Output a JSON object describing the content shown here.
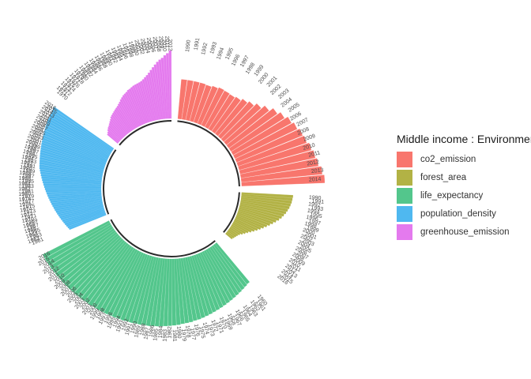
{
  "chart_data": {
    "type": "circular-bar",
    "title": "",
    "xlabel": "",
    "ylabel": "",
    "legend": {
      "title": "Middle income : Environment",
      "placement": "right"
    },
    "series": [
      {
        "name": "co2_emission",
        "color": "#F8766D",
        "years": [
          "1990",
          "1991",
          "1992",
          "1993",
          "1994",
          "1995",
          "1996",
          "1997",
          "1998",
          "1999",
          "2000",
          "2001",
          "2002",
          "2003",
          "2004",
          "2005",
          "2006",
          "2007",
          "2008",
          "2009",
          "2010",
          "2011",
          "2012",
          "2013",
          "2014"
        ],
        "year_labels_shown": [
          "1990",
          "2014"
        ],
        "values": [
          1.0,
          1.0,
          1.0,
          1.0,
          0.99,
          1.02,
          1.05,
          1.04,
          1.03,
          1.06,
          1.12,
          1.18,
          1.27,
          1.38,
          1.5,
          1.59,
          1.68,
          1.74,
          1.8,
          1.83,
          1.89,
          1.94,
          1.98,
          2.05,
          2.1
        ]
      },
      {
        "name": "forest_area",
        "color": "#B2B245",
        "years": [
          "1990",
          "1991",
          "1992",
          "1993",
          "1994",
          "1995",
          "1996",
          "1997",
          "1998",
          "1999",
          "2000",
          "2001",
          "2002",
          "2003",
          "2004",
          "2005",
          "2006",
          "2007",
          "2008",
          "2009",
          "2010",
          "2011",
          "2012",
          "2013",
          "2014",
          "2015",
          "2016"
        ],
        "year_labels_shown": [
          "1990",
          "1991",
          "1992",
          "1993"
        ],
        "values": [
          1.3,
          1.29,
          1.28,
          1.26,
          1.24,
          1.21,
          1.18,
          1.14,
          1.1,
          1.05,
          0.99,
          0.93,
          0.87,
          0.81,
          0.75,
          0.69,
          0.63,
          0.57,
          0.51,
          0.45,
          0.4,
          0.35,
          0.3,
          0.27,
          0.25,
          0.23,
          0.21
        ]
      },
      {
        "name": "life_expectancy",
        "color": "#53C68C",
        "years": [
          "1960",
          "1961",
          "1962",
          "1963",
          "1964",
          "1965",
          "1966",
          "1967",
          "1968",
          "1969",
          "1970",
          "1971",
          "1972",
          "1973",
          "1974",
          "1975",
          "1976",
          "1977",
          "1978",
          "1979",
          "1980",
          "1981",
          "1982",
          "1983",
          "1984",
          "1985",
          "1986",
          "1987",
          "1988",
          "1989",
          "1990",
          "1991",
          "1992",
          "1993",
          "1994",
          "1995",
          "1996",
          "1997",
          "1998",
          "1999",
          "2000",
          "2001",
          "2002",
          "2003",
          "2004",
          "2005",
          "2006",
          "2007",
          "2008",
          "2009",
          "2010",
          "2011",
          "2012",
          "2013",
          "2014",
          "2015",
          "2016"
        ],
        "values": [
          1.3,
          1.32,
          1.34,
          1.36,
          1.38,
          1.4,
          1.42,
          1.44,
          1.46,
          1.48,
          1.5,
          1.52,
          1.54,
          1.56,
          1.58,
          1.6,
          1.61,
          1.63,
          1.64,
          1.65,
          1.67,
          1.68,
          1.69,
          1.7,
          1.71,
          1.72,
          1.73,
          1.74,
          1.74,
          1.75,
          1.75,
          1.76,
          1.76,
          1.77,
          1.77,
          1.78,
          1.78,
          1.79,
          1.79,
          1.8,
          1.8,
          1.81,
          1.81,
          1.82,
          1.82,
          1.83,
          1.83,
          1.84,
          1.84,
          1.85,
          1.85,
          1.86,
          1.86,
          1.87,
          1.87,
          1.88,
          1.88
        ]
      },
      {
        "name": "population_density",
        "color": "#4FB8F0",
        "years": [
          "1961",
          "1962",
          "1963",
          "1964",
          "1965",
          "1966",
          "1967",
          "1968",
          "1969",
          "1970",
          "1971",
          "1972",
          "1973",
          "1974",
          "1975",
          "1976",
          "1977",
          "1978",
          "1979",
          "1980",
          "1981",
          "1982",
          "1983",
          "1984",
          "1985",
          "1986",
          "1987",
          "1988",
          "1989",
          "1990",
          "1991",
          "1992",
          "1993",
          "1994",
          "1995",
          "1996",
          "1997",
          "1998",
          "1999",
          "2000",
          "2001",
          "2002",
          "2003",
          "2004",
          "2005",
          "2006",
          "2007",
          "2008",
          "2009",
          "2010",
          "2011",
          "2012",
          "2013",
          "2014",
          "2015",
          "2016"
        ],
        "year_labels_shown": [
          "2016"
        ],
        "values": [
          1.0,
          1.02,
          1.04,
          1.06,
          1.08,
          1.1,
          1.12,
          1.14,
          1.16,
          1.18,
          1.2,
          1.22,
          1.24,
          1.26,
          1.28,
          1.3,
          1.32,
          1.34,
          1.36,
          1.38,
          1.4,
          1.42,
          1.44,
          1.46,
          1.48,
          1.5,
          1.52,
          1.54,
          1.56,
          1.58,
          1.6,
          1.61,
          1.62,
          1.63,
          1.64,
          1.65,
          1.66,
          1.67,
          1.68,
          1.69,
          1.7,
          1.71,
          1.72,
          1.73,
          1.74,
          1.75,
          1.76,
          1.77,
          1.78,
          1.79,
          1.8,
          1.8,
          1.81,
          1.82,
          1.83,
          1.84
        ]
      },
      {
        "name": "greenhouse_emission",
        "color": "#E47AEE",
        "years": [
          "1970",
          "1971",
          "1972",
          "1973",
          "1974",
          "1975",
          "1976",
          "1977",
          "1978",
          "1979",
          "1980",
          "1981",
          "1982",
          "1983",
          "1984",
          "1985",
          "1986",
          "1987",
          "1988",
          "1989",
          "1990",
          "1991",
          "1992",
          "1993",
          "1994",
          "1995",
          "1996",
          "1997",
          "1998",
          "1999",
          "2000",
          "2001",
          "2002",
          "2003",
          "2004",
          "2005",
          "2006",
          "2007",
          "2008",
          "2009",
          "2010",
          "2011",
          "2012"
        ],
        "year_labels_shown": [
          "2012"
        ],
        "values": [
          0.35,
          0.38,
          0.42,
          0.45,
          0.47,
          0.5,
          0.53,
          0.56,
          0.6,
          0.62,
          0.64,
          0.66,
          0.68,
          0.7,
          0.72,
          0.75,
          0.78,
          0.82,
          0.85,
          0.88,
          0.9,
          0.92,
          0.95,
          0.96,
          0.98,
          1.0,
          1.01,
          1.02,
          1.03,
          1.05,
          1.08,
          1.12,
          1.16,
          1.21,
          1.27,
          1.33,
          1.39,
          1.45,
          1.5,
          1.54,
          1.6,
          1.65,
          1.72
        ]
      }
    ]
  }
}
